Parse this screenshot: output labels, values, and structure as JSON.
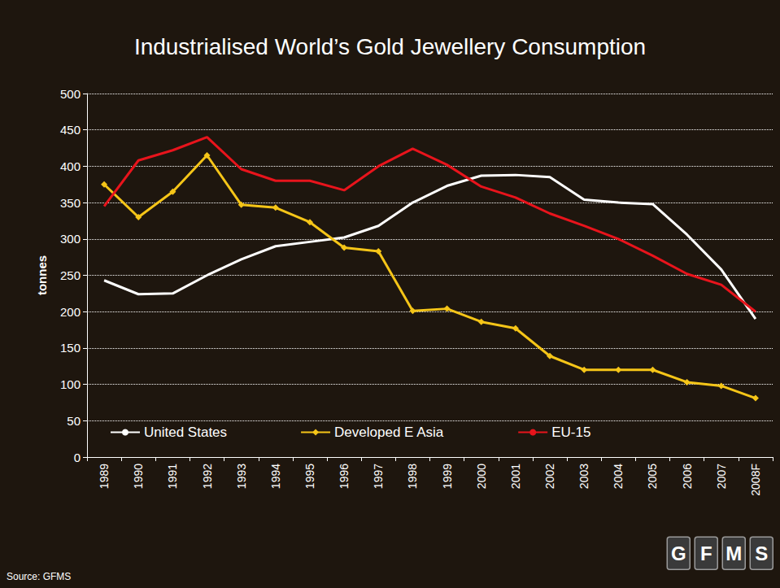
{
  "chart_data": {
    "type": "line",
    "title": "Industrialised World’s Gold Jewellery Consumption",
    "y_label": "tonnes",
    "source": "Source: GFMS",
    "logo": "GFMS",
    "categories": [
      "1989",
      "1990",
      "1991",
      "1992",
      "1993",
      "1994",
      "1995",
      "1996",
      "1997",
      "1998",
      "1999",
      "2000",
      "2001",
      "2002",
      "2003",
      "2004",
      "2005",
      "2006",
      "2007",
      "2008F"
    ],
    "series": [
      {
        "name": "United States",
        "color": "#ffffff",
        "marker": "none",
        "values": [
          243,
          224,
          225,
          250,
          272,
          290,
          296,
          302,
          318,
          350,
          373,
          387,
          388,
          385,
          354,
          350,
          348,
          306,
          258,
          190
        ]
      },
      {
        "name": "Developed E Asia",
        "color": "#f5c518",
        "marker": "diamond",
        "values": [
          375,
          330,
          365,
          415,
          347,
          343,
          323,
          288,
          283,
          201,
          204,
          186,
          177,
          139,
          120,
          120,
          120,
          103,
          98,
          81
        ]
      },
      {
        "name": "EU-15",
        "color": "#e8141c",
        "marker": "none",
        "values": [
          345,
          408,
          422,
          440,
          396,
          380,
          380,
          367,
          400,
          424,
          402,
          372,
          357,
          335,
          318,
          300,
          277,
          252,
          237,
          200
        ]
      }
    ],
    "ylim": [
      0,
      500
    ],
    "yticks": [
      0,
      50,
      100,
      150,
      200,
      250,
      300,
      350,
      400,
      450,
      500
    ],
    "grid": true,
    "legend": "bottom"
  }
}
